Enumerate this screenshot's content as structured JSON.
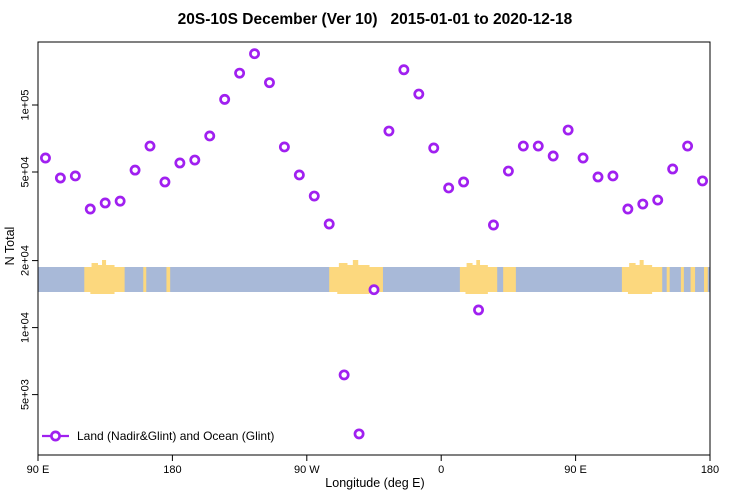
{
  "title": "20S-10S December (Ver 10)   2015-01-01 to 2020-12-18",
  "axes": {
    "x": {
      "label": "Longitude (deg E)",
      "ticks": [
        {
          "lon": 90,
          "label": "90 E"
        },
        {
          "lon": 180,
          "label": "180"
        },
        {
          "lon": 270,
          "label": "90 W"
        },
        {
          "lon": 360,
          "label": "0"
        },
        {
          "lon": 450,
          "label": "90 E"
        },
        {
          "lon": 540,
          "label": "180"
        }
      ]
    },
    "y": {
      "label": "N Total",
      "scale": "log",
      "ticks": [
        {
          "value": 100000,
          "label": "1e+05"
        },
        {
          "value": 50000,
          "label": "5e+04"
        },
        {
          "value": 20000,
          "label": "2e+04"
        },
        {
          "value": 10000,
          "label": "1e+04"
        },
        {
          "value": 5000,
          "label": "5e+03"
        }
      ]
    }
  },
  "legend": {
    "label": "Land (Nadir&Glint) and Ocean (Glint)",
    "marker": "open-circle",
    "marker_color": "#A020F0",
    "position": "bottom-left"
  },
  "map_band": {
    "ocean_color": "#A8B9D8",
    "land_color": "#FCD87E",
    "land_segments": [
      [
        121,
        148
      ],
      [
        160.5,
        162.5
      ],
      [
        176,
        178.5
      ],
      [
        285,
        321
      ],
      [
        372.5,
        397.5
      ],
      [
        401.5,
        410
      ],
      [
        481,
        508
      ],
      [
        511,
        513
      ],
      [
        520.5,
        522.5
      ],
      [
        527,
        530
      ],
      [
        536,
        538.5
      ]
    ]
  },
  "chart_data": {
    "type": "scatter",
    "title": "20S-10S December (Ver 10)   2015-01-01 to 2020-12-18",
    "xlabel": "Longitude (deg E)",
    "ylabel": "N Total",
    "x_range": [
      90,
      540
    ],
    "y_scale": "log",
    "y_range": [
      2700,
      192000
    ],
    "grid": false,
    "legend_position": "bottom-left",
    "series": [
      {
        "name": "Land (Nadir&Glint) and Ocean (Glint)",
        "marker": "open-circle",
        "color": "#A020F0",
        "points": [
          [
            95,
            57800
          ],
          [
            105,
            47000
          ],
          [
            115,
            48000
          ],
          [
            125,
            34100
          ],
          [
            135,
            36300
          ],
          [
            145,
            37000
          ],
          [
            155,
            51000
          ],
          [
            165,
            65400
          ],
          [
            175,
            45100
          ],
          [
            185,
            54900
          ],
          [
            195,
            56600
          ],
          [
            205,
            72600
          ],
          [
            215,
            106000
          ],
          [
            225,
            139000
          ],
          [
            235,
            170000
          ],
          [
            245,
            126000
          ],
          [
            255,
            64800
          ],
          [
            265,
            48500
          ],
          [
            275,
            39000
          ],
          [
            285,
            29200
          ],
          [
            295,
            6130
          ],
          [
            305,
            3330
          ],
          [
            315,
            14800
          ],
          [
            325,
            76400
          ],
          [
            335,
            144000
          ],
          [
            345,
            112000
          ],
          [
            355,
            64100
          ],
          [
            365,
            42400
          ],
          [
            375,
            45100
          ],
          [
            385,
            12000
          ],
          [
            395,
            28900
          ],
          [
            405,
            50500
          ],
          [
            415,
            65400
          ],
          [
            425,
            65400
          ],
          [
            435,
            59000
          ],
          [
            445,
            77200
          ],
          [
            455,
            57800
          ],
          [
            465,
            47500
          ],
          [
            475,
            48000
          ],
          [
            485,
            34100
          ],
          [
            495,
            35900
          ],
          [
            505,
            37400
          ],
          [
            515,
            51600
          ],
          [
            525,
            65400
          ],
          [
            535,
            45600
          ]
        ]
      }
    ]
  }
}
